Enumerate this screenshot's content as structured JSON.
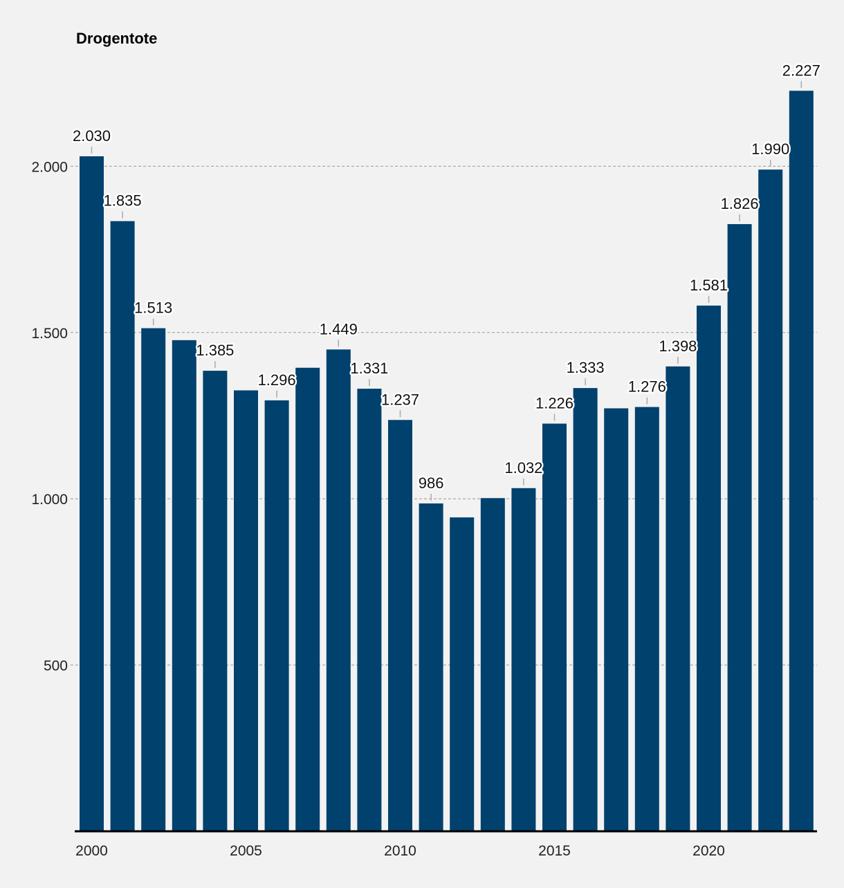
{
  "chart_data": {
    "type": "bar",
    "title": "Drogentote",
    "xlabel": "",
    "ylabel": "",
    "ylim": [
      0,
      2500
    ],
    "yticks": [
      500,
      1000,
      1500,
      2000
    ],
    "ytick_labels": [
      "500",
      "1.000",
      "1.500",
      "2.000"
    ],
    "xticks": [
      "2000",
      "2005",
      "2010",
      "2015",
      "2020"
    ],
    "grid": true,
    "colors": {
      "bar": "#00416e",
      "background": "#f2f2f2"
    },
    "categories": [
      "2000",
      "2001",
      "2002",
      "2003",
      "2004",
      "2005",
      "2006",
      "2007",
      "2008",
      "2009",
      "2010",
      "2011",
      "2012",
      "2013",
      "2014",
      "2015",
      "2016",
      "2017",
      "2018",
      "2019",
      "2020",
      "2021",
      "2022",
      "2023"
    ],
    "values": [
      2030,
      1835,
      1513,
      1477,
      1385,
      1326,
      1296,
      1394,
      1449,
      1331,
      1237,
      986,
      944,
      1002,
      1032,
      1226,
      1333,
      1272,
      1276,
      1398,
      1581,
      1826,
      1990,
      2227
    ],
    "data_labels": [
      "2.030",
      "1.835",
      "1.513",
      null,
      "1.385",
      null,
      "1.296",
      null,
      "1.449",
      "1.331",
      "1.237",
      "986",
      null,
      null,
      "1.032",
      "1.226",
      "1.333",
      null,
      "1.276",
      "1.398",
      "1.581",
      "1.826",
      "1.990",
      "2.227"
    ]
  }
}
